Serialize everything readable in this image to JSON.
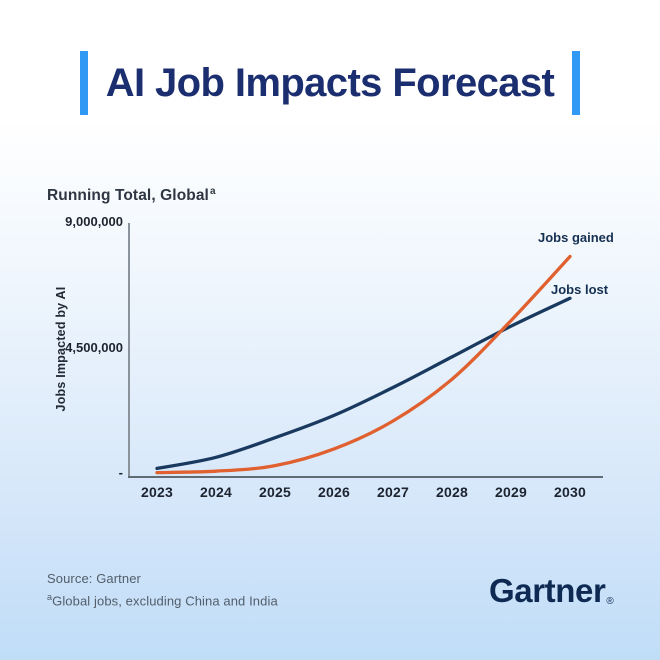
{
  "title": {
    "text": "AI Job Impacts Forecast"
  },
  "chart_data": {
    "type": "line",
    "title": "Running Total, Global",
    "title_superscript": "a",
    "ylabel": "Jobs Impacted by AI",
    "xlabel": "",
    "x": [
      "2023",
      "2024",
      "2025",
      "2026",
      "2027",
      "2028",
      "2029",
      "2030"
    ],
    "series": [
      {
        "name": "Jobs lost",
        "color": "#1a395f",
        "values": [
          200000,
          600000,
          1300000,
          2100000,
          3100000,
          4200000,
          5300000,
          6300000
        ]
      },
      {
        "name": "Jobs gained",
        "color": "#e0602f",
        "values": [
          50000,
          100000,
          300000,
          900000,
          1900000,
          3400000,
          5500000,
          7800000
        ]
      }
    ],
    "ylim": [
      0,
      9000000
    ],
    "yticks": [
      {
        "value": 9000000,
        "label": "9,000,000"
      },
      {
        "value": 4500000,
        "label": "4,500,000"
      },
      {
        "value": 0,
        "label": "-"
      }
    ],
    "grid": false,
    "legend_position": "end-of-line-labels"
  },
  "footer": {
    "source": "Source: Gartner",
    "note_superscript": "a",
    "note": "Global jobs, excluding China and India"
  },
  "brand": {
    "logo_text": "Gartner",
    "registered_mark": "®"
  },
  "colors": {
    "accent_bar": "#2f99f3",
    "title_navy": "#1b2e6f",
    "jobs_lost": "#1a395f",
    "jobs_gained": "#e0602f",
    "axis_gray": "#8a939c",
    "tick_text": "#1d2430",
    "footer_text": "#525e6a",
    "logo_navy": "#0e2a52"
  }
}
